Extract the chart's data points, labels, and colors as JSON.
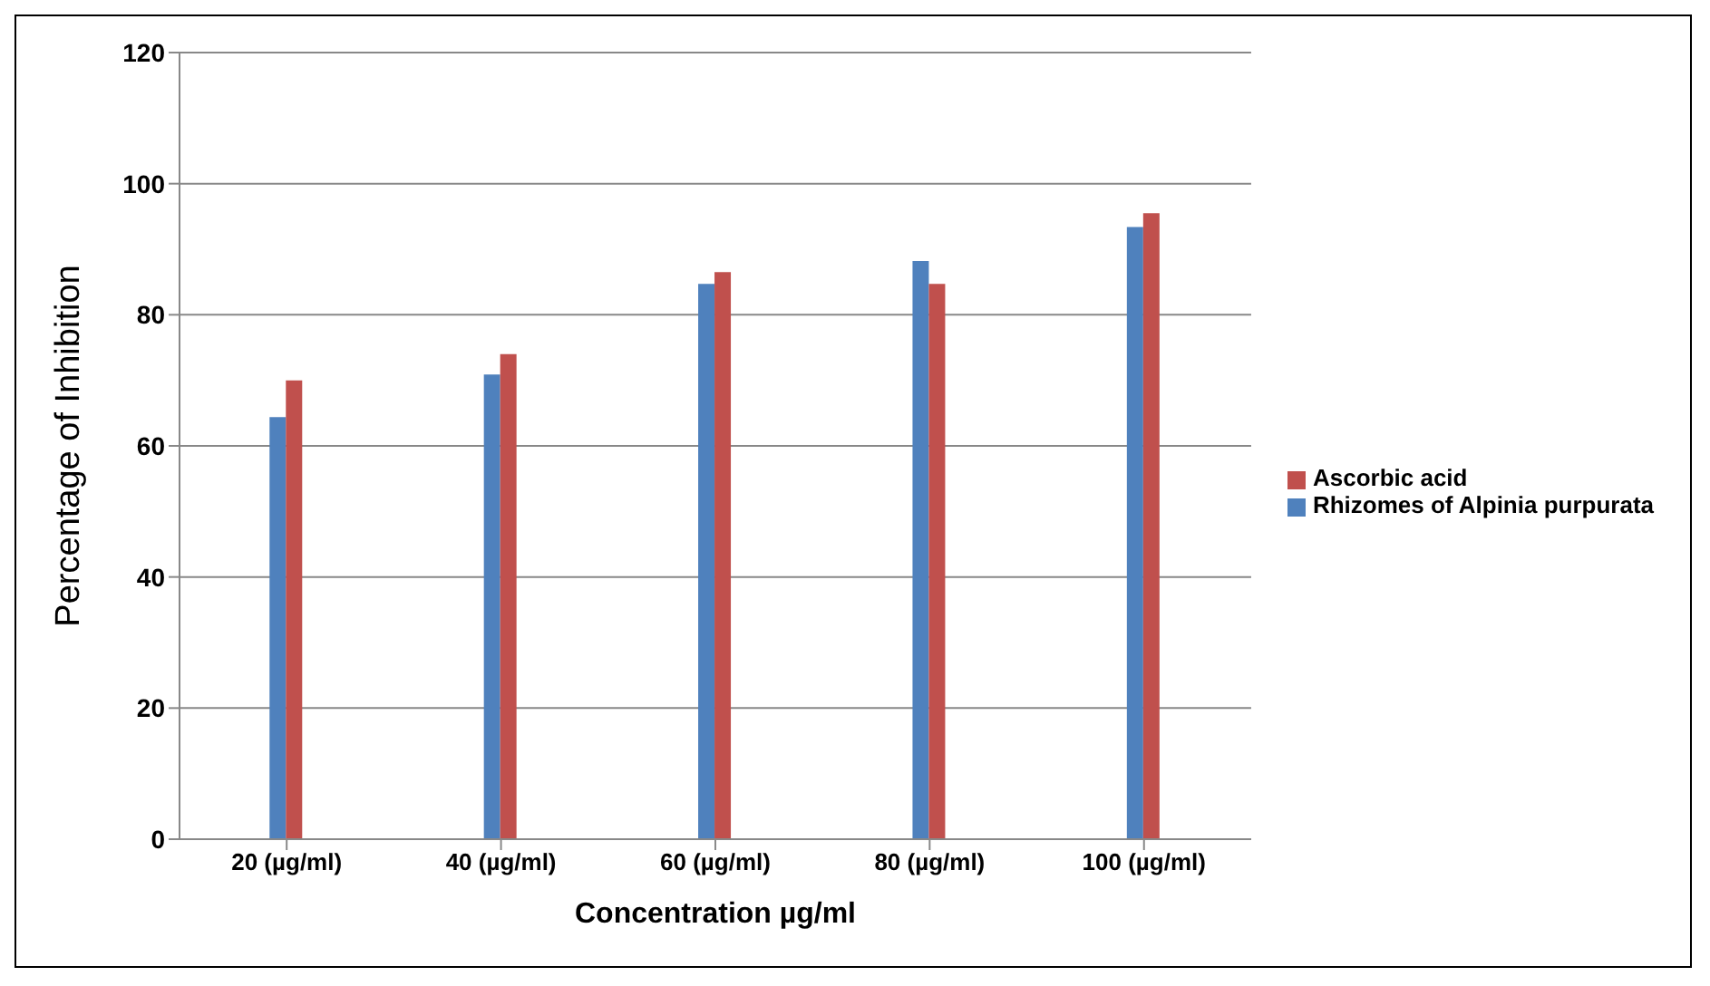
{
  "chart_data": {
    "type": "bar",
    "xlabel": "Concentration µg/ml",
    "ylabel": "Percentage of Inhibition",
    "categories": [
      "20 (µg/ml)",
      "40 (µg/ml)",
      "60 (µg/ml)",
      "80 (µg/ml)",
      "100 (µg/ml)"
    ],
    "series": [
      {
        "name": "Rhizomes of Alpinia purpurata",
        "color": "#4f81bd",
        "values": [
          64.4,
          70.9,
          84.7,
          88.2,
          93.4
        ]
      },
      {
        "name": "Ascorbic acid",
        "color": "#c0504d",
        "values": [
          70,
          74,
          86.5,
          84.7,
          95.5
        ]
      }
    ],
    "ylim": [
      0,
      120
    ],
    "yticks": [
      0,
      20,
      40,
      60,
      80,
      100,
      120
    ],
    "grid": "y",
    "legend": "right"
  }
}
